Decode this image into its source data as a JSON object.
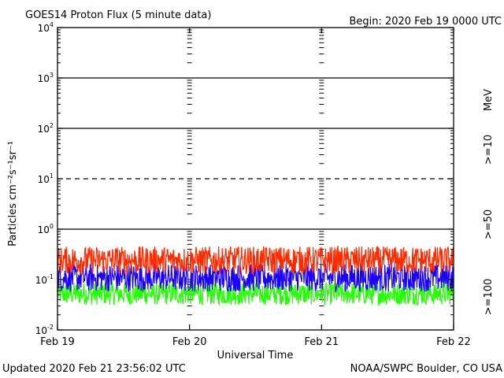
{
  "chart_data": {
    "type": "line",
    "title": "GOES14 Proton Flux (5 minute data)",
    "begin_label": "Begin: 2020 Feb 19 0000 UTC",
    "xlabel": "Universal Time",
    "ylabel": "Particles cm⁻²s⁻¹sr⁻¹",
    "y_scale": "log",
    "ylim": [
      0.01,
      10000
    ],
    "y_ticks": [
      {
        "base": "10",
        "exp": "-2",
        "value": 0.01
      },
      {
        "base": "10",
        "exp": "-1",
        "value": 0.1
      },
      {
        "base": "10",
        "exp": "0",
        "value": 1
      },
      {
        "base": "10",
        "exp": "1",
        "value": 10
      },
      {
        "base": "10",
        "exp": "2",
        "value": 100
      },
      {
        "base": "10",
        "exp": "3",
        "value": 1000
      },
      {
        "base": "10",
        "exp": "4",
        "value": 10000
      }
    ],
    "x_ticks": [
      "Feb 19",
      "Feb 20",
      "Feb 21",
      "Feb 22"
    ],
    "xlim_days": [
      0,
      3
    ],
    "reference_lines": [
      {
        "value": 1,
        "style": "solid"
      },
      {
        "value": 10,
        "style": "dashed"
      },
      {
        "value": 100,
        "style": "solid"
      },
      {
        "value": 1000,
        "style": "solid"
      }
    ],
    "unit_label": "MeV",
    "series": [
      {
        "name": ">=10",
        "color": "#ff2a00",
        "baseline": 0.2,
        "spread": 0.55
      },
      {
        "name": ">=50",
        "color": "#1a00ff",
        "baseline": 0.09,
        "spread": 0.55
      },
      {
        "name": ">=100",
        "color": "#22ff00",
        "baseline": 0.045,
        "spread": 0.45
      }
    ]
  },
  "footer": {
    "updated": "Updated 2020 Feb 21 23:56:02 UTC",
    "source": "NOAA/SWPC Boulder, CO USA"
  }
}
